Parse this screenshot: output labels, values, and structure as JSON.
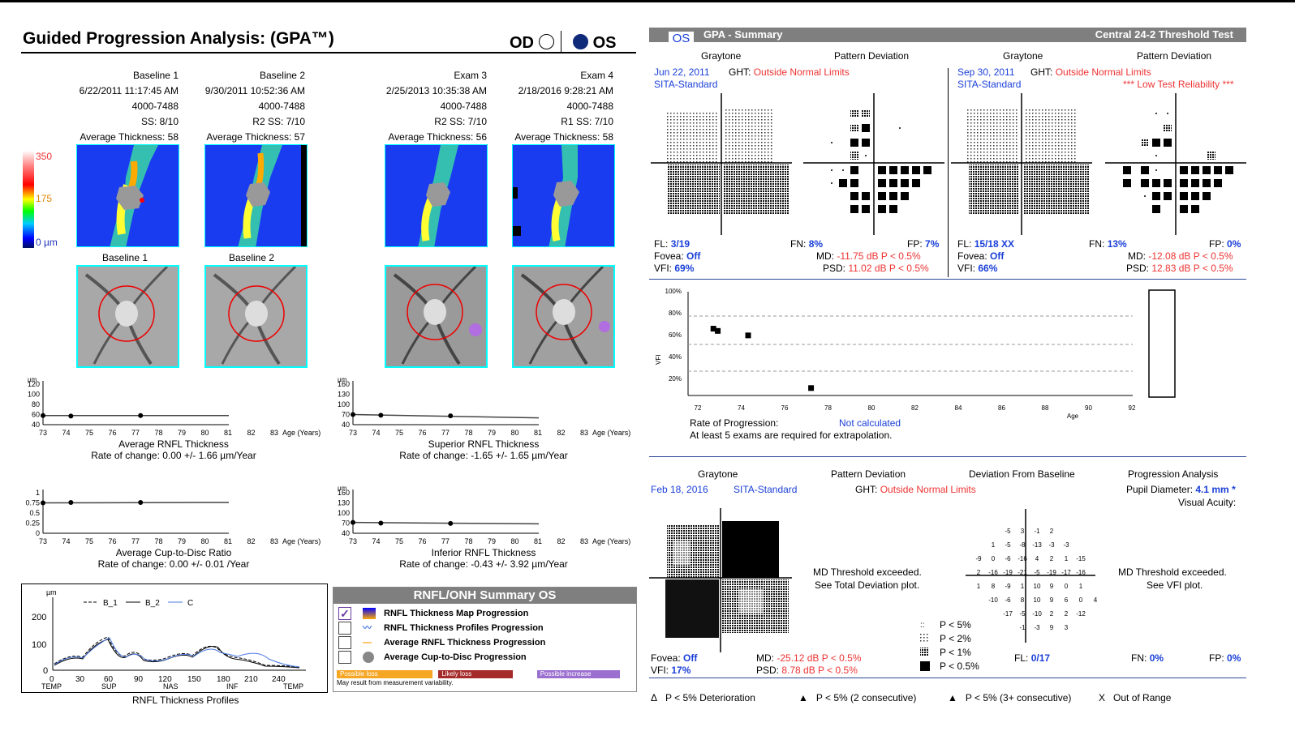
{
  "header": {
    "title": "Guided Progression Analysis: (GPA™)",
    "od": "OD",
    "os": "OS"
  },
  "exams": [
    {
      "name": "Baseline 1",
      "date": "6/22/2011 11:17:45 AM",
      "serial": "4000-7488",
      "ss": "SS: 8/10",
      "avg": "Average Thickness: 58",
      "fundus_label": "Baseline 1"
    },
    {
      "name": "Baseline 2",
      "date": "9/30/2011 10:52:36 AM",
      "serial": "4000-7488",
      "ss": "R2   SS: 7/10",
      "avg": "Average Thickness: 57",
      "fundus_label": "Baseline 2"
    },
    {
      "name": "Exam 3",
      "date": "2/25/2013 10:35:38 AM",
      "serial": "4000-7488",
      "ss": "R2   SS: 7/10",
      "avg": "Average Thickness: 56",
      "fundus_label": ""
    },
    {
      "name": "Exam 4",
      "date": "2/18/2016 9:28:21 AM",
      "serial": "4000-7488",
      "ss": "R1   SS: 7/10",
      "avg": "Average Thickness: 58",
      "fundus_label": ""
    }
  ],
  "colorbar": {
    "top": "350",
    "mid": "175",
    "bottom": "0 µm"
  },
  "trend_charts": [
    {
      "unit": "µm",
      "yticks": [
        "120",
        "100",
        "80",
        "60",
        "40"
      ],
      "xticks": [
        "73",
        "74",
        "75",
        "76",
        "77",
        "78",
        "79",
        "80",
        "81",
        "82",
        "83"
      ],
      "xunit": "Age (Years)",
      "title": "Average RNFL Thickness",
      "rate": "Rate of change: 0.00 +/- 1.66 µm/Year",
      "points": [
        [
          73,
          58
        ],
        [
          74.2,
          57
        ],
        [
          77.2,
          58
        ]
      ],
      "fit": [
        [
          73,
          58
        ],
        [
          81,
          58
        ]
      ],
      "ymin": 40,
      "ymax": 120
    },
    {
      "unit": "µm",
      "yticks": [
        "160",
        "130",
        "100",
        "70",
        "40"
      ],
      "xticks": [
        "73",
        "74",
        "75",
        "76",
        "77",
        "78",
        "79",
        "80",
        "81",
        "82",
        "83"
      ],
      "xunit": "Age (Years)",
      "title": "Superior RNFL Thickness",
      "rate": "Rate of change: -1.65 +/- 1.65 µm/Year",
      "points": [
        [
          73,
          70
        ],
        [
          74.2,
          68
        ],
        [
          77.2,
          66
        ]
      ],
      "fit": [
        [
          73,
          70
        ],
        [
          81,
          60
        ]
      ],
      "ymin": 40,
      "ymax": 160
    },
    {
      "unit": "",
      "yticks": [
        "1",
        "0.75",
        "0.5",
        "0.25",
        "0"
      ],
      "xticks": [
        "73",
        "74",
        "75",
        "76",
        "77",
        "78",
        "79",
        "80",
        "81",
        "82",
        "83"
      ],
      "xunit": "Age (Years)",
      "title": "Average Cup-to-Disc Ratio",
      "rate": "Rate of change: 0.00 +/- 0.01  /Year",
      "points": [
        [
          73,
          0.75
        ],
        [
          74.2,
          0.76
        ],
        [
          77.2,
          0.76
        ]
      ],
      "fit": [
        [
          73,
          0.75
        ],
        [
          81,
          0.76
        ]
      ],
      "ymin": 0,
      "ymax": 1
    },
    {
      "unit": "µm",
      "yticks": [
        "160",
        "130",
        "100",
        "70",
        "40"
      ],
      "xticks": [
        "73",
        "74",
        "75",
        "76",
        "77",
        "78",
        "79",
        "80",
        "81",
        "82",
        "83"
      ],
      "xunit": "Age (Years)",
      "title": "Inferior RNFL Thickness",
      "rate": "Rate of change: -0.43 +/- 3.92 µm/Year",
      "points": [
        [
          73,
          72
        ],
        [
          74.2,
          70
        ],
        [
          77.2,
          69
        ]
      ],
      "fit": [
        [
          73,
          72
        ],
        [
          81,
          68
        ]
      ],
      "ymin": 40,
      "ymax": 160
    }
  ],
  "profiles": {
    "unit": "µm",
    "legend": [
      "B_1",
      "B_2",
      "C"
    ],
    "yticks": [
      "200",
      "100",
      "0"
    ],
    "xticks": [
      "0",
      "30",
      "60",
      "90",
      "120",
      "150",
      "180",
      "210",
      "240"
    ],
    "xlabels": [
      "TEMP",
      "SUP",
      "NAS",
      "INF",
      "TEMP"
    ],
    "title": "RNFL Thickness Profiles"
  },
  "summary": {
    "title": "RNFL/ONH Summary OS",
    "items": [
      "RNFL Thickness Map Progression",
      "RNFL Thickness Profiles Progression",
      "Average RNFL Thickness Progression",
      "Average Cup-to-Disc Progression"
    ],
    "legend": [
      "Possible loss",
      "Likely loss",
      "Possible increase"
    ],
    "note": "May result from measurement variability."
  },
  "gpa": {
    "eye": "OS",
    "title": "GPA - Summary",
    "test": "Central 24-2 Threshold Test",
    "b1": {
      "graytone": "Graytone",
      "pd": "Pattern Deviation",
      "date": "Jun 22, 2011",
      "strategy": "SITA-Standard",
      "ght_label": "GHT:",
      "ght": "Outside Normal Limits",
      "fl_label": "FL:",
      "fl": "3/19",
      "fn_label": "FN:",
      "fn": "8%",
      "fp_label": "FP:",
      "fp": "7%",
      "fovea_label": "Fovea:",
      "fovea": "Off",
      "md_label": "MD:",
      "md": "-11.75 dB P < 0.5%",
      "vfi_label": "VFI:",
      "vfi": "69%",
      "psd_label": "PSD:",
      "psd": "11.02 dB P < 0.5%",
      "reliability": ""
    },
    "b2": {
      "graytone": "Graytone",
      "pd": "Pattern Deviation",
      "date": "Sep 30, 2011",
      "strategy": "SITA-Standard",
      "ght_label": "GHT:",
      "ght": "Outside Normal Limits",
      "fl_label": "FL:",
      "fl": "15/18 XX",
      "fn_label": "FN:",
      "fn": "13%",
      "fp_label": "FP:",
      "fp": "0%",
      "fovea_label": "Fovea:",
      "fovea": "Off",
      "md_label": "MD:",
      "md": "-12.08 dB P < 0.5%",
      "vfi_label": "VFI:",
      "vfi": "66%",
      "psd_label": "PSD:",
      "psd": "12.83 dB P < 0.5%",
      "reliability": "*** Low Test Reliability ***"
    },
    "vfi_chart": {
      "ylabel": "VFI",
      "yticks": [
        "100%",
        "80%",
        "60%",
        "40%",
        "20%"
      ],
      "xticks": [
        "72",
        "74",
        "76",
        "78",
        "80",
        "82",
        "84",
        "86",
        "88",
        "90",
        "92"
      ],
      "xlabel": "Age",
      "points": [
        [
          72.7,
          70
        ],
        [
          72.9,
          68
        ],
        [
          74.3,
          64
        ],
        [
          77.2,
          17
        ]
      ]
    },
    "rate_label": "Rate of Progression:",
    "rate_value": "Not calculated",
    "rate_note": "At least 5 exams are required for extrapolation.",
    "cur": {
      "graytone": "Graytone",
      "pd": "Pattern Deviation",
      "dfb": "Deviation From Baseline",
      "pa": "Progression Analysis",
      "date": "Feb 18, 2016",
      "strategy": "SITA-Standard",
      "ght_label": "GHT:",
      "ght": "Outside Normal Limits",
      "pupil_label": "Pupil Diameter:",
      "pupil": "4.1 mm *",
      "acuity": "Visual Acuity:",
      "md_msg1": "MD Threshold exceeded.",
      "md_msg2": "See Total Deviation plot.",
      "vfi_msg1": "MD Threshold exceeded.",
      "vfi_msg2": "See VFI plot.",
      "fovea_label": "Fovea:",
      "fovea": "Off",
      "vfi_label": "VFI:",
      "vfi": "17%",
      "md_label": "MD:",
      "md": "-25.12 dB P < 0.5%",
      "psd_label": "PSD:",
      "psd": "8.78 dB P < 0.5%",
      "fl_label": "FL:",
      "fl": "0/17",
      "fn_label": "FN:",
      "fn": "0%",
      "fp_label": "FP:",
      "fp": "0%",
      "dfb_rows": [
        [
          "",
          "",
          "-5",
          "3",
          "-1",
          "2",
          "",
          ""
        ],
        [
          "",
          "1",
          "-5",
          "-8",
          "-13",
          "-3",
          "-3",
          ""
        ],
        [
          "-9",
          "0",
          "-6",
          "-16",
          "4",
          "2",
          "1",
          "-15"
        ],
        [
          "2",
          "-16",
          "-19",
          "-21",
          "-5",
          "-19",
          "-17",
          "-16"
        ],
        [
          "1",
          "8",
          "-9",
          "1",
          "10",
          "9",
          "0",
          "1"
        ],
        [
          "",
          "-10",
          "-6",
          "8",
          "10",
          "9",
          "6",
          "0",
          "4"
        ],
        [
          "",
          "",
          "-17",
          "-5",
          "-10",
          "2",
          "2",
          "-12"
        ],
        [
          "",
          "",
          "",
          "-1",
          "-3",
          "9",
          "3",
          ""
        ]
      ],
      "p_legend": [
        "P < 5%",
        "P < 2%",
        "P < 1%",
        "P < 0.5%"
      ]
    },
    "footer": [
      "P < 5% Deterioration",
      "P < 5% (2 consecutive)",
      "P < 5% (3+ consecutive)",
      "Out of Range"
    ],
    "footer_marks": [
      "Δ",
      "▲",
      "▲",
      "X"
    ]
  }
}
